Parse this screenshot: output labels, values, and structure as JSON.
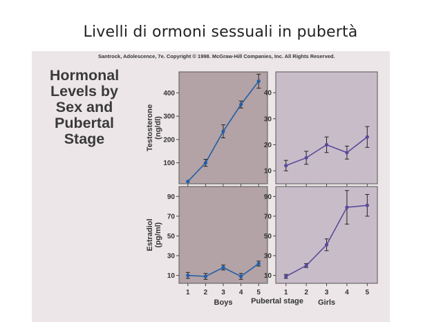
{
  "slide_title": "Livelli di ormoni sessuali in pubertà",
  "credit": "Santrock, Adolescence, 7e. Copyright © 1998. McGraw-Hill Companies, Inc. All Rights Reserved.",
  "figure_title_lines": [
    "Hormonal",
    "Levels by",
    "Sex and",
    "Pubertal",
    "Stage"
  ],
  "colors": {
    "boys_bg": "#b3a2a6",
    "girls_bg": "#c8bcc9",
    "boys_line": "#1f5fa8",
    "girls_line": "#5a4a9a",
    "figure_bg": "#ece6e8"
  },
  "chart_data": [
    {
      "type": "line",
      "panel": "boys-testosterone",
      "ylabel": "Testosterone (ng/dl)",
      "x": [
        1,
        2,
        3,
        4,
        5
      ],
      "xlim": [
        0.5,
        5.5
      ],
      "ylim": [
        10,
        490
      ],
      "yticks": [
        100,
        200,
        300,
        400
      ],
      "series": [
        {
          "values": [
            20,
            100,
            235,
            350,
            450
          ],
          "errors": [
            0,
            15,
            28,
            15,
            30
          ]
        }
      ]
    },
    {
      "type": "line",
      "panel": "girls-testosterone",
      "x": [
        1,
        2,
        3,
        4,
        5
      ],
      "xlim": [
        0.5,
        5.5
      ],
      "ylim": [
        5,
        48
      ],
      "yticks": [
        10,
        20,
        30,
        40
      ],
      "series": [
        {
          "values": [
            12,
            15,
            20,
            17,
            23
          ],
          "errors": [
            2,
            2.5,
            3,
            2.5,
            4
          ]
        }
      ]
    },
    {
      "type": "line",
      "panel": "boys-estradiol",
      "ylabel": "Estradiol (pg/ml)",
      "x": [
        1,
        2,
        3,
        4,
        5
      ],
      "xlim": [
        0.5,
        5.5
      ],
      "ylim": [
        2,
        100
      ],
      "yticks": [
        10,
        30,
        50,
        70,
        90
      ],
      "xtick_labels": [
        "1",
        "2",
        "3",
        "4",
        "5"
      ],
      "xlabel": "Boys",
      "series": [
        {
          "values": [
            10,
            9,
            18,
            9,
            22
          ],
          "errors": [
            3,
            3,
            2.5,
            3,
            2.5
          ]
        }
      ]
    },
    {
      "type": "line",
      "panel": "girls-estradiol",
      "x": [
        1,
        2,
        3,
        4,
        5
      ],
      "xlim": [
        0.5,
        5.5
      ],
      "ylim": [
        2,
        100
      ],
      "yticks": [
        10,
        30,
        50,
        70,
        90
      ],
      "xtick_labels": [
        "1",
        "2",
        "3",
        "4",
        "5"
      ],
      "xlabel": "Girls",
      "series": [
        {
          "values": [
            9,
            20,
            41,
            79,
            81
          ],
          "errors": [
            2,
            2,
            6,
            17,
            11
          ]
        }
      ]
    }
  ],
  "shared_xlabel": "Pubertal stage"
}
